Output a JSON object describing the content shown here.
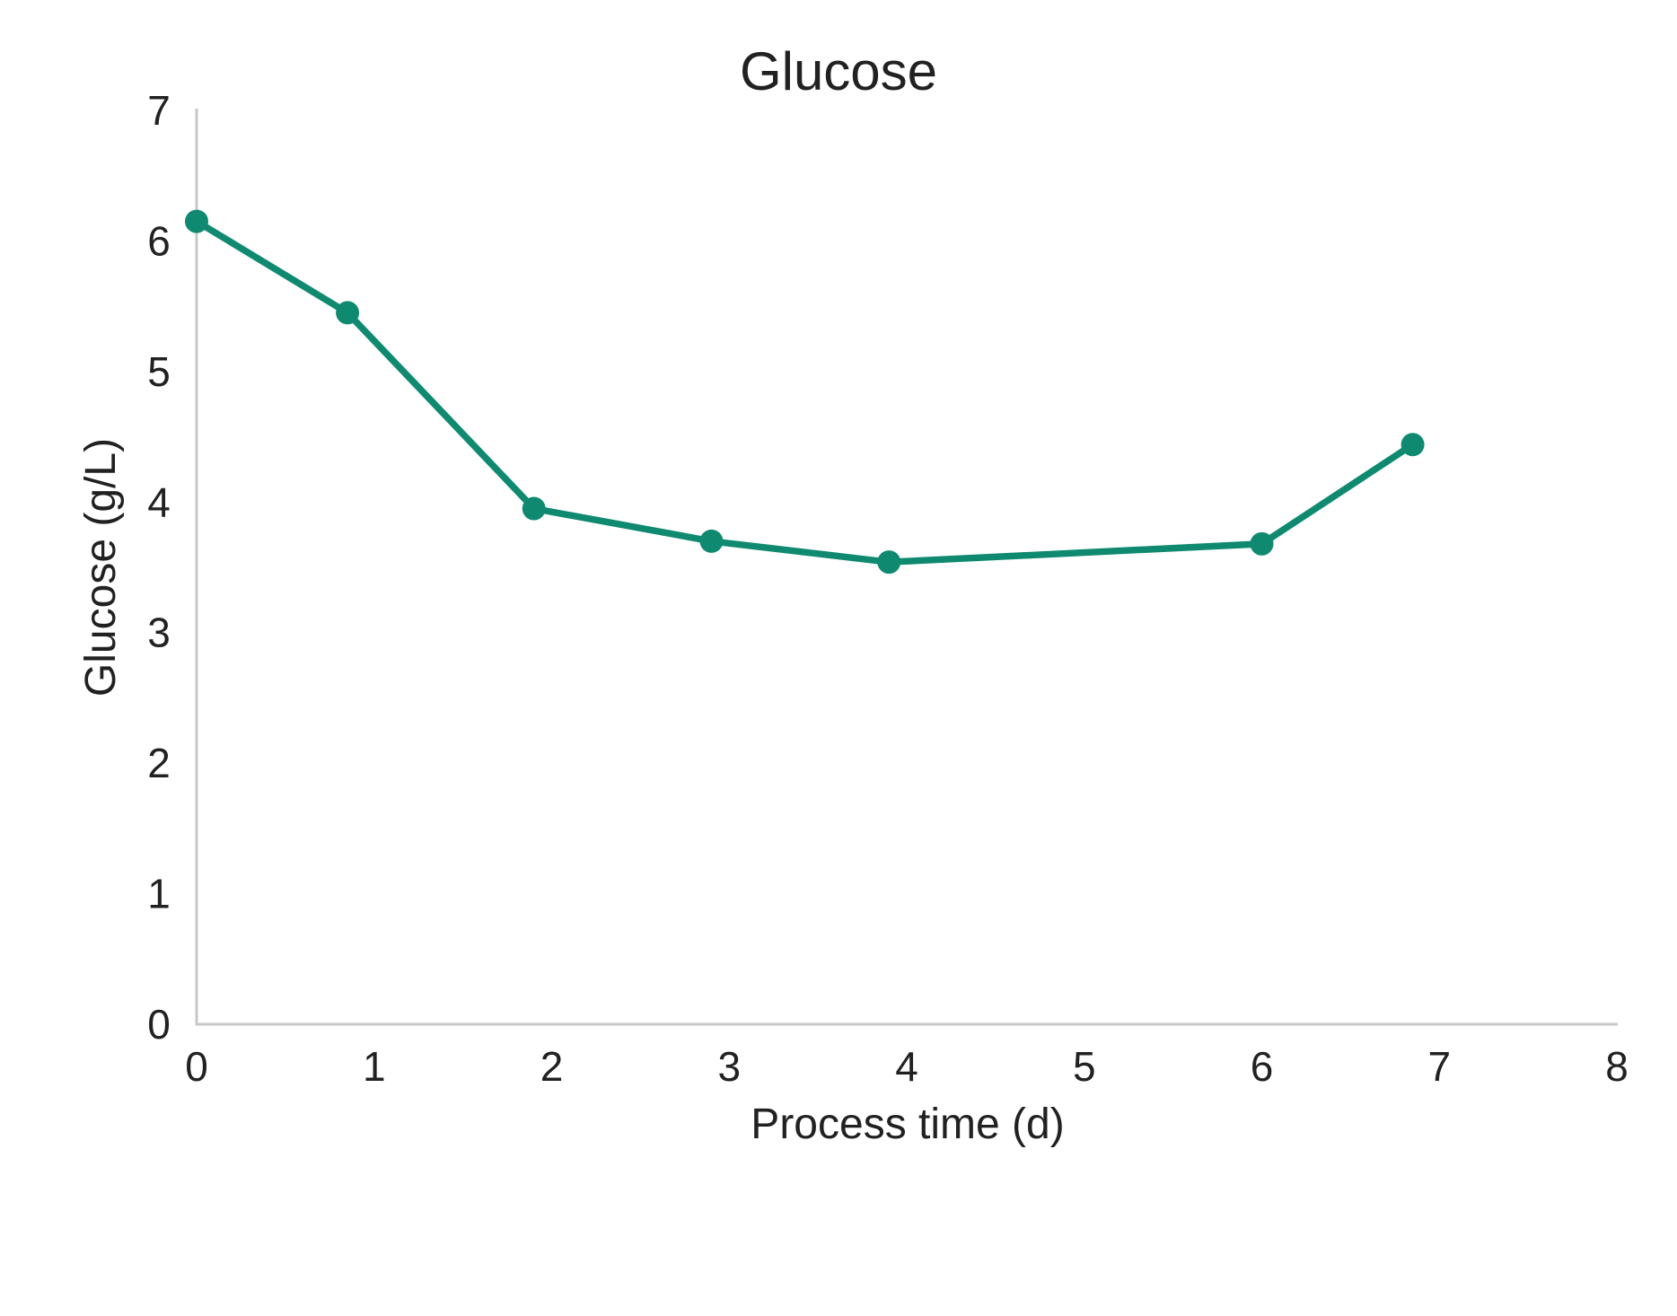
{
  "chart": {
    "title": "Glucose",
    "x_axis_title": "Process time (d)",
    "y_axis_title": "Glucose (g/L)"
  },
  "chart_data": {
    "type": "line",
    "title": "Glucose",
    "xlabel": "Process time (d)",
    "ylabel": "Glucose (g/L)",
    "series": [
      {
        "name": "Glucose",
        "x": [
          0,
          0.85,
          1.9,
          2.9,
          3.9,
          6,
          6.85
        ],
        "y": [
          6.15,
          5.45,
          3.95,
          3.7,
          3.54,
          3.68,
          4.44
        ]
      }
    ],
    "xlim": [
      0,
      8
    ],
    "ylim": [
      0,
      7
    ],
    "x_ticks": [
      0,
      1,
      2,
      3,
      4,
      5,
      6,
      7,
      8
    ],
    "y_ticks": [
      0,
      1,
      2,
      3,
      4,
      5,
      6,
      7
    ],
    "grid": false,
    "legend": false,
    "marker": "circle",
    "colors": {
      "line": "#0f8a70",
      "marker": "#0f8a70",
      "axis_line": "#c8c8c8",
      "text": "#212121",
      "background": "#ffffff"
    }
  }
}
